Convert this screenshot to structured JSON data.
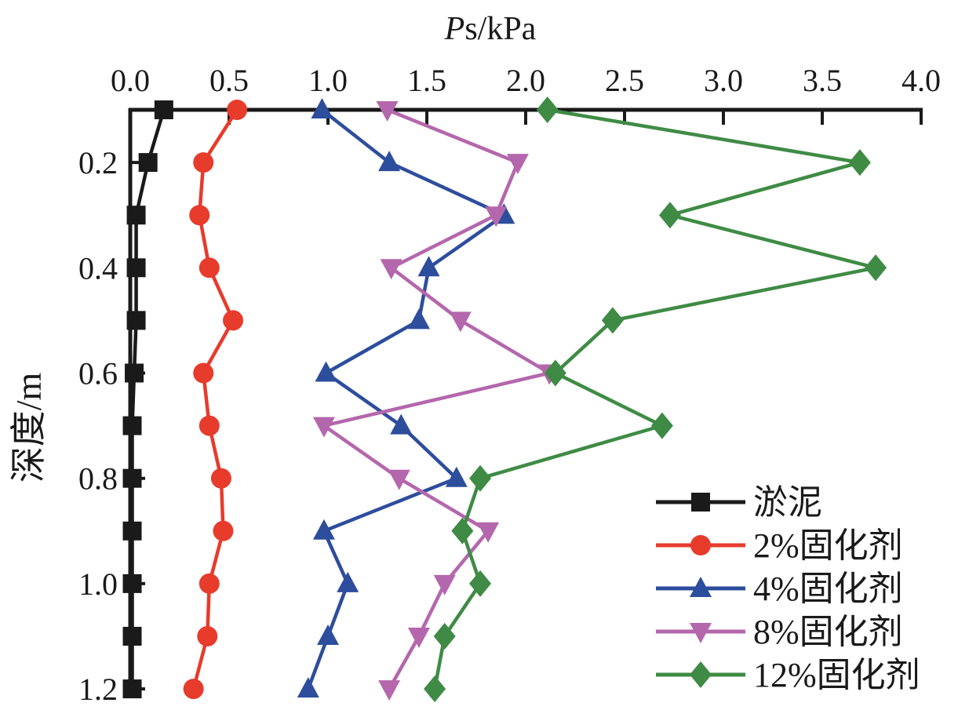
{
  "chart_data": {
    "type": "line",
    "title": "Ps/kPa",
    "title_italic": "P",
    "title_rest": "s/kPa",
    "xlabel": "Ps/kPa",
    "ylabel": "深度/m",
    "x_axis": {
      "position": "top",
      "min": 0.0,
      "max": 4.0,
      "ticks": [
        0.0,
        0.5,
        1.0,
        1.5,
        2.0,
        2.5,
        3.0,
        3.5,
        4.0
      ],
      "tick_labels": [
        "0.0",
        "0.5",
        "1.0",
        "1.5",
        "2.0",
        "2.5",
        "3.0",
        "3.5",
        "4.0"
      ]
    },
    "y_axis": {
      "position": "left",
      "inverted": true,
      "min": 0.1,
      "max": 1.2,
      "ticks": [
        0.2,
        0.4,
        0.6,
        0.8,
        1.0,
        1.2
      ],
      "tick_labels": [
        "0.2",
        "0.4",
        "0.6",
        "0.8",
        "1.0",
        "1.2"
      ]
    },
    "grid": false,
    "legend_position": "bottom-right",
    "depths": [
      0.1,
      0.2,
      0.3,
      0.4,
      0.5,
      0.6,
      0.7,
      0.8,
      0.9,
      1.0,
      1.1,
      1.2
    ],
    "series": [
      {
        "name": "淤泥",
        "marker": "square",
        "color": "#1a1a1a",
        "values": [
          0.17,
          0.09,
          0.03,
          0.03,
          0.03,
          0.02,
          0.01,
          0.01,
          0.01,
          0.01,
          0.01,
          0.01
        ]
      },
      {
        "name": "2%固化剂",
        "marker": "circle",
        "color": "#e73b2c",
        "values": [
          0.54,
          0.37,
          0.35,
          0.4,
          0.52,
          0.37,
          0.4,
          0.46,
          0.47,
          0.4,
          0.39,
          0.32
        ]
      },
      {
        "name": "4%固化剂",
        "marker": "triangle-up",
        "color": "#2d4d9d",
        "values": [
          0.97,
          1.31,
          1.89,
          1.51,
          1.46,
          0.99,
          1.37,
          1.65,
          0.98,
          1.1,
          1.0,
          0.9
        ]
      },
      {
        "name": "8%固化剂",
        "marker": "triangle-down",
        "color": "#b467ac",
        "values": [
          1.3,
          1.96,
          1.85,
          1.32,
          1.67,
          2.12,
          0.98,
          1.36,
          1.81,
          1.59,
          1.46,
          1.31
        ]
      },
      {
        "name": "12%固化剂",
        "marker": "diamond",
        "color": "#3f8b45",
        "values": [
          2.11,
          3.69,
          2.73,
          3.77,
          2.44,
          2.15,
          2.69,
          1.77,
          1.68,
          1.77,
          1.59,
          1.54
        ]
      }
    ]
  }
}
